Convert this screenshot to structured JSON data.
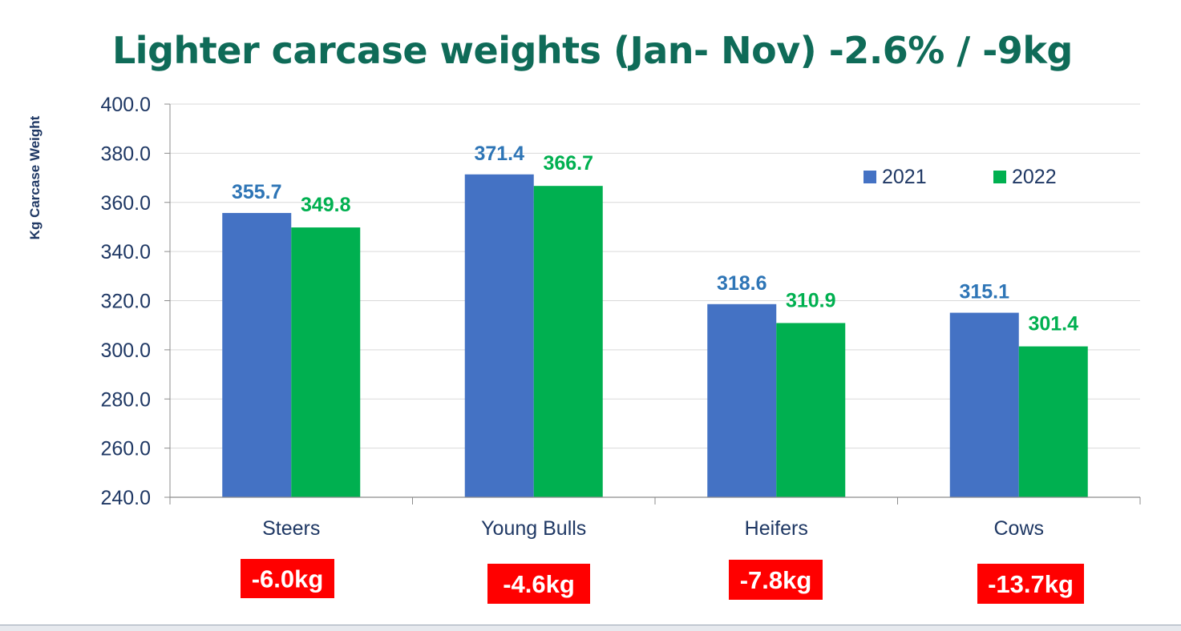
{
  "title": "Lighter carcase weights (Jan- Nov) -2.6% / -9kg",
  "chart_data": {
    "type": "bar",
    "title": "Lighter carcase weights (Jan- Nov) -2.6% / -9kg",
    "xlabel": "",
    "ylabel": "Kg Carcase Weight",
    "ylim": [
      240,
      400
    ],
    "yticks": [
      "240.0",
      "260.0",
      "280.0",
      "300.0",
      "320.0",
      "340.0",
      "360.0",
      "380.0",
      "400.0"
    ],
    "grid": true,
    "legend_position": "top-right",
    "categories": [
      "Steers",
      "Young Bulls",
      "Heifers",
      "Cows"
    ],
    "series": [
      {
        "name": "2021",
        "color": "#4472c4",
        "label_color": "#2e75b6",
        "values": [
          355.7,
          371.4,
          318.6,
          315.1
        ],
        "labels": [
          "355.7",
          "371.4",
          "318.6",
          "315.1"
        ]
      },
      {
        "name": "2022",
        "color": "#00b050",
        "label_color": "#00b050",
        "values": [
          349.8,
          366.7,
          310.9,
          301.4
        ],
        "labels": [
          "349.8",
          "366.7",
          "310.9",
          "301.4"
        ]
      }
    ],
    "differences": [
      "-6.0kg",
      "-4.6kg",
      "-7.8kg",
      "-13.7kg"
    ],
    "difference_badge_color": "#ff0000"
  }
}
